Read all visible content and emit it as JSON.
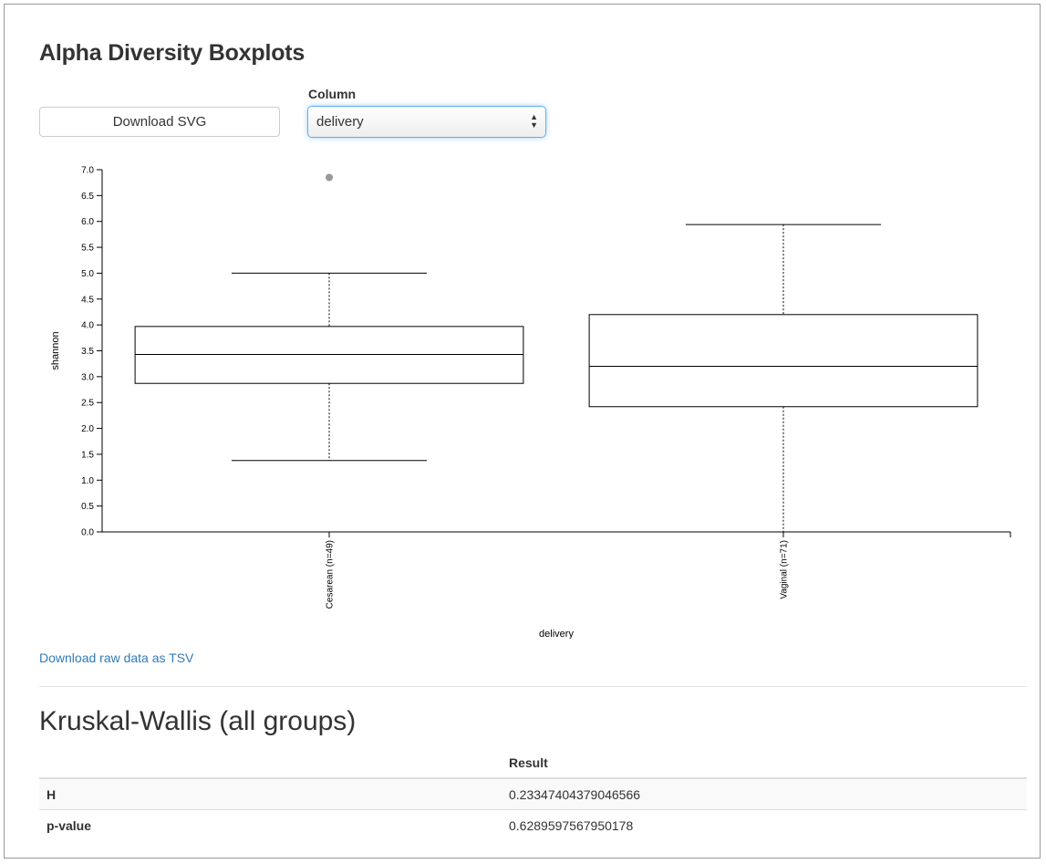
{
  "header": {
    "title": "Alpha Diversity Boxplots"
  },
  "toolbar": {
    "download_svg_label": "Download SVG",
    "column_label": "Column",
    "column_value": "delivery"
  },
  "chart_data": {
    "type": "boxplot",
    "xlabel": "delivery",
    "ylabel": "shannon",
    "ylim": [
      0,
      7.0
    ],
    "yticks": [
      "0.0",
      "0.5",
      "1.0",
      "1.5",
      "2.0",
      "2.5",
      "3.0",
      "3.5",
      "4.0",
      "4.5",
      "5.0",
      "5.5",
      "6.0",
      "6.5",
      "7.0"
    ],
    "categories": [
      "Cesarean (n=49)",
      "Vaginal (n=71)"
    ],
    "boxes": [
      {
        "category": "Cesarean (n=49)",
        "whisker_low": 1.38,
        "q1": 2.87,
        "median": 3.43,
        "q3": 3.97,
        "whisker_high": 5.0,
        "outliers": [
          6.85
        ]
      },
      {
        "category": "Vaginal (n=71)",
        "whisker_low": 0.0,
        "q1": 2.42,
        "median": 3.2,
        "q3": 4.2,
        "whisker_high": 5.94,
        "outliers": []
      }
    ],
    "outlier_color": "#999999"
  },
  "links": {
    "raw_data": "Download raw data as TSV"
  },
  "stats": {
    "title": "Kruskal-Wallis (all groups)",
    "header": {
      "name": "",
      "result": "Result"
    },
    "rows": [
      {
        "name": "H",
        "value": "0.23347404379046566"
      },
      {
        "name": "p-value",
        "value": "0.6289597567950178"
      }
    ]
  }
}
